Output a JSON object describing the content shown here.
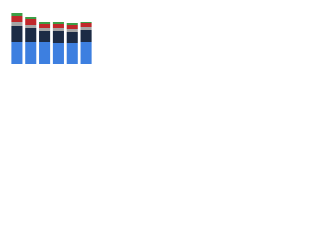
{
  "chart_data": {
    "type": "stacked_bar",
    "categories": [
      null,
      null,
      null,
      null,
      null,
      null
    ],
    "series": [
      {
        "color": "#3d7fe0",
        "values": [
          22,
          22,
          22,
          21,
          21,
          22
        ]
      },
      {
        "color": "#1c2b45",
        "values": [
          16,
          14,
          11,
          12,
          11,
          12
        ]
      },
      {
        "color": "#a5a5a5",
        "values": [
          4,
          3,
          3,
          3,
          3,
          3
        ]
      },
      {
        "color": "#c0282b",
        "values": [
          6,
          6,
          4,
          4,
          4,
          4
        ]
      },
      {
        "color": "#3d9e46",
        "values": [
          3,
          2,
          2,
          2,
          2,
          1
        ]
      }
    ],
    "ylim": [
      0,
      55
    ]
  }
}
